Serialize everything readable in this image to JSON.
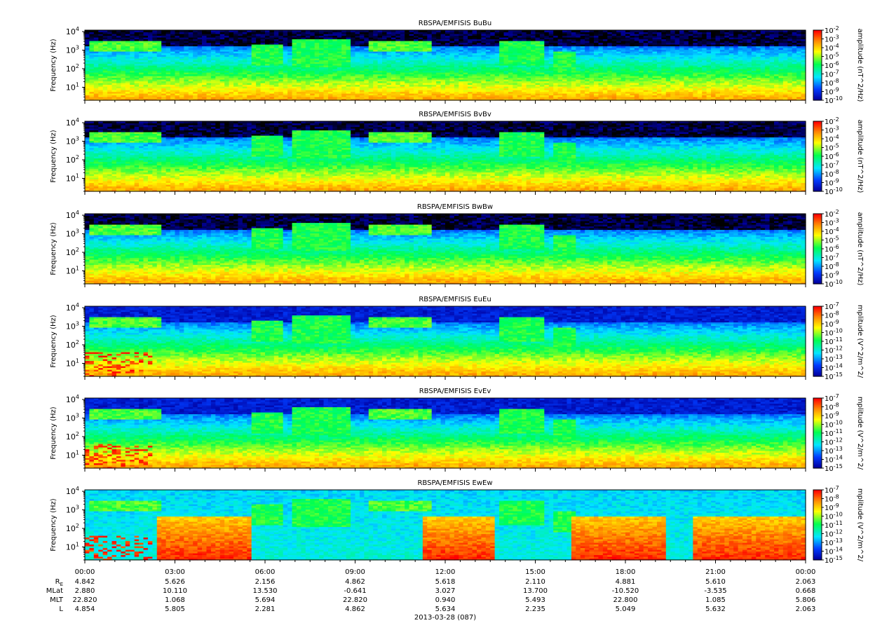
{
  "chart_data": {
    "type": "heatmap",
    "date_label": "2013-03-28 (087)",
    "time_ticks": [
      "00:00",
      "03:00",
      "06:00",
      "09:00",
      "12:00",
      "15:00",
      "18:00",
      "21:00",
      "00:00"
    ],
    "ylabel": "Frequency (Hz)",
    "yscale": "log",
    "ylim_hz": [
      2,
      12000
    ],
    "y_ticks": [
      {
        "base": "10",
        "exp": "1",
        "value": 10
      },
      {
        "base": "10",
        "exp": "2",
        "value": 100
      },
      {
        "base": "10",
        "exp": "3",
        "value": 1000
      },
      {
        "base": "10",
        "exp": "4",
        "value": 10000
      }
    ],
    "colormap": [
      "#ff0000",
      "#ff8c00",
      "#ffff00",
      "#00ff40",
      "#00ffff",
      "#0064ff",
      "#0000c8",
      "#000000"
    ],
    "panels": [
      {
        "title": "RBSPA/EMFISIS  BuBu",
        "cbar_label": "amplitude (nT^2/Hz)",
        "cbar_ticks": [
          {
            "b": "10",
            "e": "-2"
          },
          {
            "b": "10",
            "e": "-3"
          },
          {
            "b": "10",
            "e": "-4"
          },
          {
            "b": "10",
            "e": "-5"
          },
          {
            "b": "10",
            "e": "-6"
          },
          {
            "b": "10",
            "e": "-7"
          },
          {
            "b": "10",
            "e": "-8"
          },
          {
            "b": "10",
            "e": "-9"
          },
          {
            "b": "10",
            "e": "-10"
          }
        ]
      },
      {
        "title": "RBSPA/EMFISIS  BvBv",
        "cbar_label": "amplitude (nT^2/Hz)",
        "cbar_ticks": [
          {
            "b": "10",
            "e": "-2"
          },
          {
            "b": "10",
            "e": "-3"
          },
          {
            "b": "10",
            "e": "-4"
          },
          {
            "b": "10",
            "e": "-5"
          },
          {
            "b": "10",
            "e": "-6"
          },
          {
            "b": "10",
            "e": "-7"
          },
          {
            "b": "10",
            "e": "-8"
          },
          {
            "b": "10",
            "e": "-9"
          },
          {
            "b": "10",
            "e": "-10"
          }
        ]
      },
      {
        "title": "RBSPA/EMFISIS  BwBw",
        "cbar_label": "amplitude (nT^2/Hz)",
        "cbar_ticks": [
          {
            "b": "10",
            "e": "-2"
          },
          {
            "b": "10",
            "e": "-3"
          },
          {
            "b": "10",
            "e": "-4"
          },
          {
            "b": "10",
            "e": "-5"
          },
          {
            "b": "10",
            "e": "-6"
          },
          {
            "b": "10",
            "e": "-7"
          },
          {
            "b": "10",
            "e": "-8"
          },
          {
            "b": "10",
            "e": "-9"
          },
          {
            "b": "10",
            "e": "-10"
          }
        ]
      },
      {
        "title": "RBSPA/EMFISIS  EuEu",
        "cbar_label": "mplitude (V^2/m^2/",
        "cbar_ticks": [
          {
            "b": "10",
            "e": "-7"
          },
          {
            "b": "10",
            "e": "-8"
          },
          {
            "b": "10",
            "e": "-9"
          },
          {
            "b": "10",
            "e": "-10"
          },
          {
            "b": "10",
            "e": "-11"
          },
          {
            "b": "10",
            "e": "-12"
          },
          {
            "b": "10",
            "e": "-13"
          },
          {
            "b": "10",
            "e": "-14"
          },
          {
            "b": "10",
            "e": "-15"
          }
        ]
      },
      {
        "title": "RBSPA/EMFISIS  EvEv",
        "cbar_label": "mplitude (V^2/m^2/",
        "cbar_ticks": [
          {
            "b": "10",
            "e": "-7"
          },
          {
            "b": "10",
            "e": "-8"
          },
          {
            "b": "10",
            "e": "-9"
          },
          {
            "b": "10",
            "e": "-10"
          },
          {
            "b": "10",
            "e": "-11"
          },
          {
            "b": "10",
            "e": "-12"
          },
          {
            "b": "10",
            "e": "-13"
          },
          {
            "b": "10",
            "e": "-14"
          },
          {
            "b": "10",
            "e": "-15"
          }
        ]
      },
      {
        "title": "RBSPA/EMFISIS  EwEw",
        "cbar_label": "mplitude (V^2/m^2/",
        "cbar_ticks": [
          {
            "b": "10",
            "e": "-7"
          },
          {
            "b": "10",
            "e": "-8"
          },
          {
            "b": "10",
            "e": "-9"
          },
          {
            "b": "10",
            "e": "-10"
          },
          {
            "b": "10",
            "e": "-11"
          },
          {
            "b": "10",
            "e": "-12"
          },
          {
            "b": "10",
            "e": "-13"
          },
          {
            "b": "10",
            "e": "-14"
          },
          {
            "b": "10",
            "e": "-15"
          }
        ]
      }
    ],
    "ephemeris": [
      {
        "name": "R",
        "sub": "E",
        "values": [
          "4.842",
          "5.626",
          "2.156",
          "4.862",
          "5.618",
          "2.110",
          "4.881",
          "5.610",
          "2.063"
        ]
      },
      {
        "name": "MLat",
        "sub": "",
        "values": [
          "2.880",
          "10.110",
          "13.530",
          "-0.641",
          "3.027",
          "13.700",
          "-10.520",
          "-3.535",
          "0.668"
        ]
      },
      {
        "name": "MLT",
        "sub": "",
        "values": [
          "22.820",
          "1.068",
          "5.694",
          "22.820",
          "0.940",
          "5.493",
          "22.800",
          "1.085",
          "5.806"
        ]
      },
      {
        "name": "L",
        "sub": "",
        "values": [
          "4.854",
          "5.805",
          "2.281",
          "4.862",
          "5.634",
          "2.235",
          "5.049",
          "5.632",
          "2.063"
        ]
      }
    ]
  }
}
